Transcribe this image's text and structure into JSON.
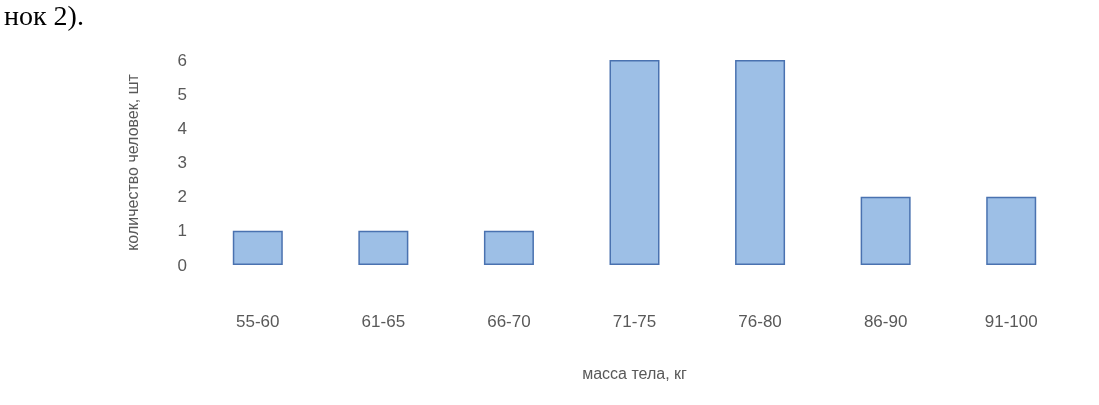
{
  "chart_data": {
    "type": "bar",
    "categories": [
      "55-60",
      "61-65",
      "66-70",
      "71-75",
      "76-80",
      "86-90",
      "91-100"
    ],
    "values": [
      1,
      1,
      1,
      6,
      6,
      2,
      2
    ],
    "color": "#9dbfe6",
    "xlabel": "масса тела, кг",
    "ylabel": "количество человек, шт",
    "ylim": [
      0,
      6
    ],
    "yticks": [
      0,
      1,
      2,
      3,
      4,
      5,
      6
    ],
    "grid": false,
    "annotations": [
      "нок 2)."
    ]
  }
}
